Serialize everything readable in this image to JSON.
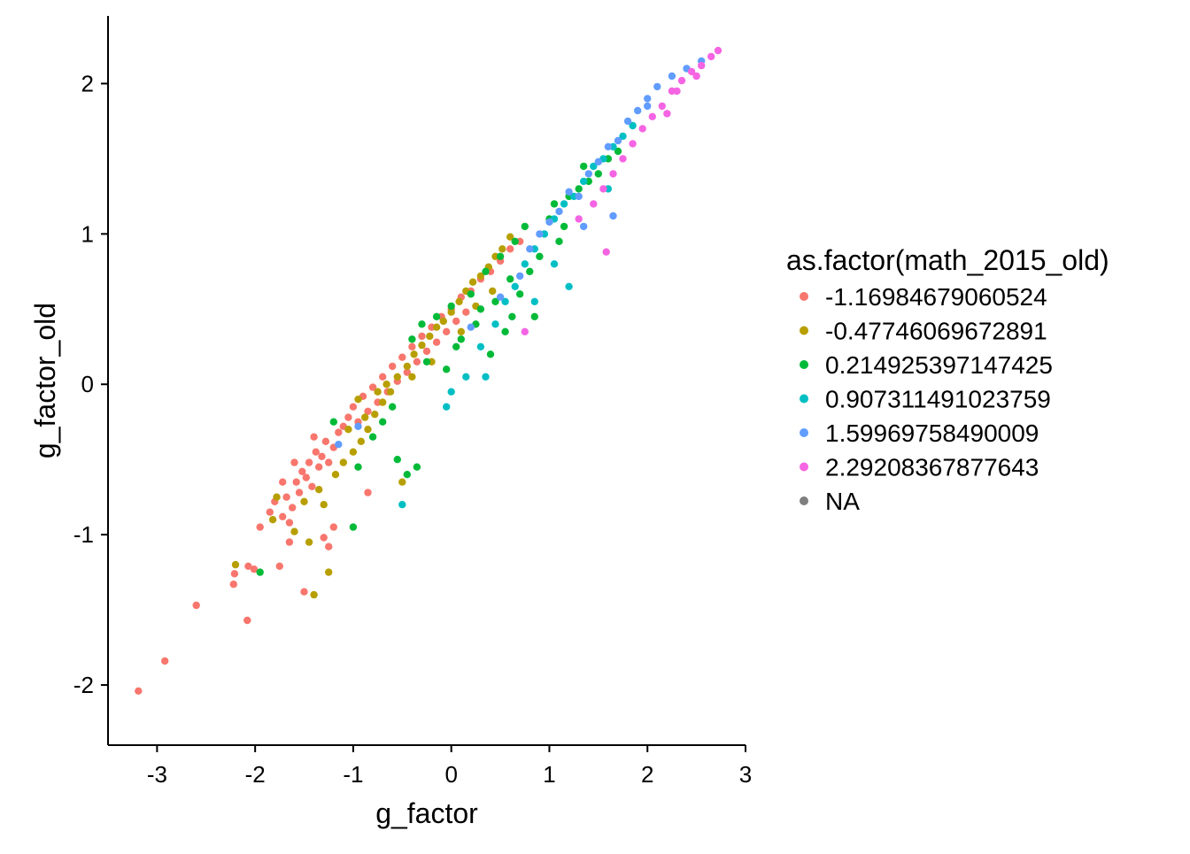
{
  "chart_data": {
    "type": "scatter",
    "title": "",
    "xlabel": "g_factor",
    "ylabel": "g_factor_old",
    "xlim": [
      -3.5,
      3.0
    ],
    "ylim": [
      -2.4,
      2.45
    ],
    "xticks": [
      -3,
      -2,
      -1,
      0,
      1,
      2,
      3
    ],
    "yticks": [
      -2,
      -1,
      0,
      1,
      2
    ],
    "xtick_labels": [
      "-3",
      "-2",
      "-1",
      "0",
      "1",
      "2",
      "3"
    ],
    "ytick_labels": [
      "-2",
      "-1",
      "0",
      "1",
      "2"
    ],
    "grid": false,
    "legend": {
      "title": "as.factor(math_2015_old)",
      "placement": "right",
      "entries": [
        {
          "label": "-1.16984679060524",
          "color": "#F8766D"
        },
        {
          "label": "-0.47746069672891",
          "color": "#B79F00"
        },
        {
          "label": "0.214925397147425",
          "color": "#00BA38"
        },
        {
          "label": "0.907311491023759",
          "color": "#00BFC4"
        },
        {
          "label": "1.59969758490009",
          "color": "#619CFF"
        },
        {
          "label": "2.29208367877643",
          "color": "#F564E3"
        },
        {
          "label": "NA",
          "color": "#7F7F7F"
        }
      ]
    },
    "series": [
      {
        "name": "-1.16984679060524",
        "color": "#F8766D",
        "points": [
          [
            -3.19,
            -2.04
          ],
          [
            -2.92,
            -1.84
          ],
          [
            -2.6,
            -1.47
          ],
          [
            -2.22,
            -1.33
          ],
          [
            -2.21,
            -1.26
          ],
          [
            -2.08,
            -1.57
          ],
          [
            -2.07,
            -1.21
          ],
          [
            -2.01,
            -1.23
          ],
          [
            -1.95,
            -0.95
          ],
          [
            -1.85,
            -0.85
          ],
          [
            -1.8,
            -0.78
          ],
          [
            -1.72,
            -0.88
          ],
          [
            -1.68,
            -0.75
          ],
          [
            -1.65,
            -0.92
          ],
          [
            -1.62,
            -0.82
          ],
          [
            -1.58,
            -0.65
          ],
          [
            -1.55,
            -0.72
          ],
          [
            -1.52,
            -0.58
          ],
          [
            -1.48,
            -0.62
          ],
          [
            -1.45,
            -0.52
          ],
          [
            -1.42,
            -0.68
          ],
          [
            -1.38,
            -0.45
          ],
          [
            -1.35,
            -0.55
          ],
          [
            -1.32,
            -0.48
          ],
          [
            -1.28,
            -0.38
          ],
          [
            -1.25,
            -0.52
          ],
          [
            -1.2,
            -0.42
          ],
          [
            -1.15,
            -0.32
          ],
          [
            -1.1,
            -0.28
          ],
          [
            -1.05,
            -0.22
          ],
          [
            -1.0,
            -0.15
          ],
          [
            -0.95,
            -0.25
          ],
          [
            -0.9,
            -0.08
          ],
          [
            -0.85,
            -0.18
          ],
          [
            -0.8,
            -0.02
          ],
          [
            -0.75,
            -0.12
          ],
          [
            -0.7,
            0.05
          ],
          [
            -0.65,
            -0.05
          ],
          [
            -0.6,
            0.12
          ],
          [
            -0.55,
            0.02
          ],
          [
            -0.5,
            0.18
          ],
          [
            -0.45,
            0.08
          ],
          [
            -0.4,
            0.25
          ],
          [
            -0.35,
            0.15
          ],
          [
            -0.3,
            0.32
          ],
          [
            -0.25,
            0.22
          ],
          [
            -0.2,
            0.38
          ],
          [
            -0.15,
            0.28
          ],
          [
            -0.1,
            0.45
          ],
          [
            -0.05,
            0.35
          ],
          [
            0.0,
            0.5
          ],
          [
            0.05,
            0.42
          ],
          [
            0.1,
            0.58
          ],
          [
            0.15,
            0.48
          ],
          [
            0.2,
            0.62
          ],
          [
            0.3,
            0.7
          ],
          [
            0.4,
            0.75
          ],
          [
            0.5,
            0.82
          ],
          [
            0.6,
            0.9
          ],
          [
            0.7,
            0.95
          ],
          [
            -1.75,
            -1.21
          ],
          [
            -1.65,
            -1.05
          ],
          [
            -1.5,
            -1.38
          ],
          [
            -1.25,
            -1.08
          ],
          [
            -1.2,
            -0.95
          ],
          [
            -1.3,
            -1.02
          ],
          [
            -0.85,
            -0.72
          ],
          [
            -1.72,
            -0.65
          ],
          [
            -1.6,
            -0.52
          ],
          [
            -1.4,
            -0.35
          ]
        ]
      },
      {
        "name": "-0.47746069672891",
        "color": "#B79F00",
        "points": [
          [
            -2.2,
            -1.2
          ],
          [
            -1.82,
            -0.9
          ],
          [
            -1.78,
            -0.75
          ],
          [
            -1.6,
            -0.98
          ],
          [
            -1.5,
            -0.78
          ],
          [
            -1.45,
            -1.05
          ],
          [
            -1.4,
            -1.4
          ],
          [
            -1.35,
            -0.7
          ],
          [
            -1.3,
            -0.8
          ],
          [
            -1.25,
            -1.25
          ],
          [
            -1.18,
            -0.6
          ],
          [
            -1.1,
            -0.52
          ],
          [
            -1.0,
            -0.45
          ],
          [
            -0.92,
            -0.38
          ],
          [
            -0.85,
            -0.3
          ],
          [
            -0.78,
            -0.2
          ],
          [
            -0.7,
            -0.12
          ],
          [
            -0.62,
            -0.05
          ],
          [
            -0.55,
            0.05
          ],
          [
            -0.5,
            -0.65
          ],
          [
            -0.45,
            0.12
          ],
          [
            -0.38,
            0.2
          ],
          [
            -0.3,
            0.26
          ],
          [
            -0.22,
            0.32
          ],
          [
            -0.15,
            0.38
          ],
          [
            -0.08,
            0.42
          ],
          [
            0.0,
            0.48
          ],
          [
            0.08,
            0.55
          ],
          [
            0.15,
            0.62
          ],
          [
            0.22,
            0.68
          ],
          [
            0.3,
            0.72
          ],
          [
            0.38,
            0.78
          ],
          [
            0.45,
            0.85
          ],
          [
            0.52,
            0.9
          ],
          [
            0.6,
            0.98
          ],
          [
            -0.95,
            -0.1
          ],
          [
            -0.88,
            -0.22
          ],
          [
            -0.66,
            0.0
          ],
          [
            -0.4,
            0.05
          ],
          [
            -0.2,
            0.15
          ],
          [
            0.1,
            0.35
          ],
          [
            0.25,
            0.52
          ],
          [
            0.42,
            0.62
          ],
          [
            -1.05,
            -0.3
          ],
          [
            -0.75,
            -0.05
          ]
        ]
      },
      {
        "name": "0.214925397147425",
        "color": "#00BA38",
        "points": [
          [
            -1.95,
            -1.25
          ],
          [
            -1.2,
            -0.25
          ],
          [
            -1.0,
            -0.95
          ],
          [
            -0.8,
            -0.35
          ],
          [
            -0.6,
            -0.15
          ],
          [
            -0.55,
            -0.5
          ],
          [
            -0.4,
            0.3
          ],
          [
            -0.35,
            -0.55
          ],
          [
            -0.25,
            0.15
          ],
          [
            -0.15,
            0.45
          ],
          [
            -0.05,
            0.1
          ],
          [
            0.0,
            0.52
          ],
          [
            0.1,
            0.3
          ],
          [
            0.2,
            0.6
          ],
          [
            0.25,
            0.4
          ],
          [
            0.35,
            0.75
          ],
          [
            0.4,
            0.2
          ],
          [
            0.45,
            0.55
          ],
          [
            0.5,
            0.85
          ],
          [
            0.55,
            0.35
          ],
          [
            0.6,
            0.7
          ],
          [
            0.65,
            0.95
          ],
          [
            0.7,
            0.6
          ],
          [
            0.75,
            1.05
          ],
          [
            0.85,
            0.45
          ],
          [
            0.9,
            0.85
          ],
          [
            1.0,
            1.1
          ],
          [
            1.05,
            1.2
          ],
          [
            1.1,
            0.95
          ],
          [
            1.2,
            1.25
          ],
          [
            1.3,
            1.3
          ],
          [
            1.4,
            1.35
          ],
          [
            1.5,
            1.4
          ],
          [
            1.6,
            1.5
          ],
          [
            1.7,
            1.55
          ],
          [
            -0.95,
            -0.55
          ],
          [
            -0.7,
            -0.25
          ],
          [
            -0.3,
            0.4
          ],
          [
            0.3,
            0.5
          ],
          [
            0.8,
            0.75
          ],
          [
            1.15,
            1.05
          ],
          [
            1.35,
            1.45
          ],
          [
            -0.45,
            -0.6
          ],
          [
            0.05,
            0.25
          ],
          [
            0.62,
            0.45
          ]
        ]
      },
      {
        "name": "0.907311491023759",
        "color": "#00BFC4",
        "points": [
          [
            -0.5,
            -0.8
          ],
          [
            -0.05,
            -0.15
          ],
          [
            0.15,
            0.05
          ],
          [
            0.3,
            0.25
          ],
          [
            0.45,
            0.4
          ],
          [
            0.55,
            0.55
          ],
          [
            0.65,
            0.65
          ],
          [
            0.75,
            0.8
          ],
          [
            0.85,
            0.9
          ],
          [
            0.95,
            1.0
          ],
          [
            1.05,
            1.1
          ],
          [
            1.15,
            1.2
          ],
          [
            1.25,
            1.25
          ],
          [
            1.35,
            1.35
          ],
          [
            1.45,
            1.45
          ],
          [
            1.55,
            1.5
          ],
          [
            1.65,
            1.58
          ],
          [
            1.75,
            1.65
          ],
          [
            1.85,
            1.72
          ],
          [
            1.05,
            0.8
          ],
          [
            1.2,
            0.65
          ],
          [
            0.85,
            0.55
          ],
          [
            0.35,
            0.05
          ],
          [
            0.0,
            -0.05
          ],
          [
            1.6,
            1.3
          ]
        ]
      },
      {
        "name": "1.59969758490009",
        "color": "#619CFF",
        "points": [
          [
            -1.15,
            -0.4
          ],
          [
            -0.95,
            -0.28
          ],
          [
            0.2,
            0.38
          ],
          [
            0.5,
            0.58
          ],
          [
            0.7,
            0.72
          ],
          [
            0.8,
            0.9
          ],
          [
            0.9,
            1.0
          ],
          [
            1.0,
            1.08
          ],
          [
            1.1,
            1.15
          ],
          [
            1.2,
            1.28
          ],
          [
            1.3,
            1.25
          ],
          [
            1.4,
            1.4
          ],
          [
            1.5,
            1.48
          ],
          [
            1.6,
            1.58
          ],
          [
            1.7,
            1.62
          ],
          [
            1.8,
            1.75
          ],
          [
            1.9,
            1.82
          ],
          [
            2.0,
            1.9
          ],
          [
            2.1,
            1.98
          ],
          [
            2.25,
            2.05
          ],
          [
            2.4,
            2.1
          ],
          [
            2.55,
            2.15
          ],
          [
            1.65,
            1.12
          ],
          [
            1.35,
            1.05
          ],
          [
            2.0,
            1.85
          ]
        ]
      },
      {
        "name": "2.29208367877643",
        "color": "#F564E3",
        "points": [
          [
            0.75,
            0.35
          ],
          [
            1.3,
            1.1
          ],
          [
            1.45,
            1.2
          ],
          [
            1.55,
            1.3
          ],
          [
            1.65,
            1.4
          ],
          [
            1.75,
            1.5
          ],
          [
            1.85,
            1.6
          ],
          [
            1.95,
            1.7
          ],
          [
            2.05,
            1.78
          ],
          [
            2.15,
            1.85
          ],
          [
            2.25,
            1.95
          ],
          [
            2.35,
            2.02
          ],
          [
            2.45,
            2.08
          ],
          [
            2.55,
            2.12
          ],
          [
            2.65,
            2.18
          ],
          [
            2.72,
            2.22
          ],
          [
            1.58,
            0.88
          ],
          [
            2.2,
            1.8
          ],
          [
            2.3,
            1.95
          ],
          [
            2.5,
            2.05
          ]
        ]
      }
    ]
  }
}
